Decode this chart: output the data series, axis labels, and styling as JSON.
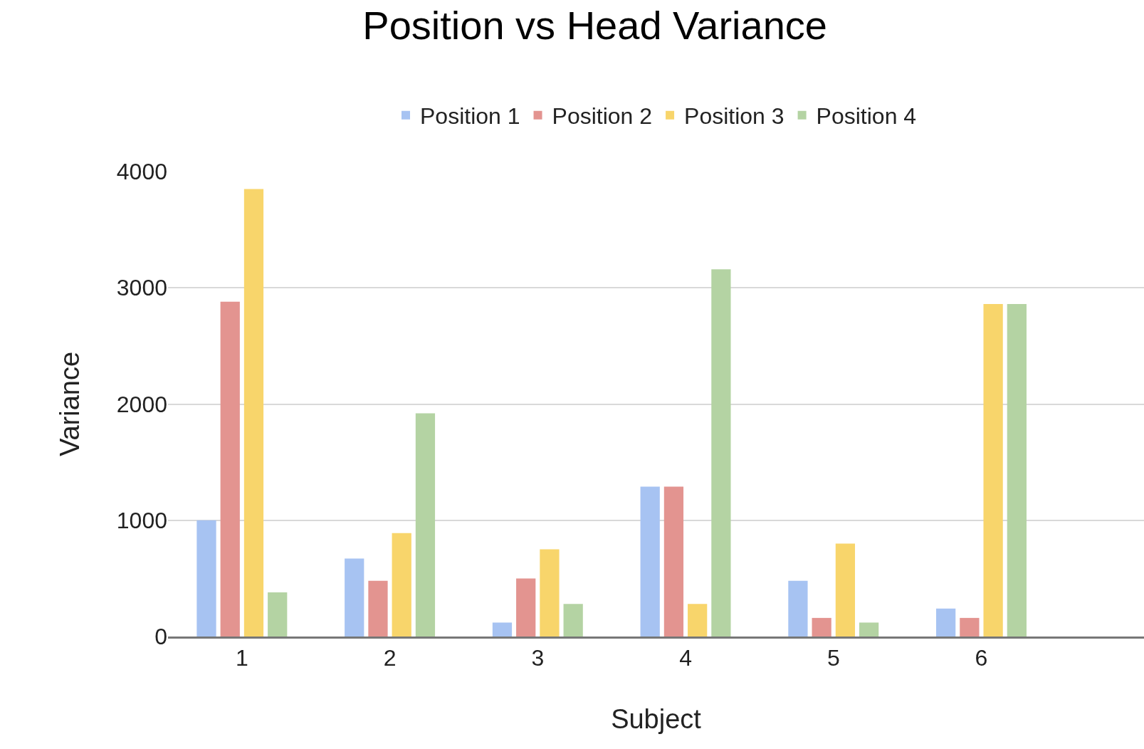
{
  "chart_data": {
    "type": "bar",
    "title": "Position vs Head Variance",
    "xlabel": "Subject",
    "ylabel": "Variance",
    "categories": [
      "1",
      "2",
      "3",
      "4",
      "5",
      "6"
    ],
    "series": [
      {
        "name": "Position 1",
        "color": "#a7c3f2",
        "values": [
          1000,
          670,
          120,
          1290,
          480,
          240
        ]
      },
      {
        "name": "Position 2",
        "color": "#e39490",
        "values": [
          2880,
          480,
          500,
          1290,
          160,
          160
        ]
      },
      {
        "name": "Position 3",
        "color": "#f8d56b",
        "values": [
          3850,
          890,
          750,
          280,
          800,
          2860
        ]
      },
      {
        "name": "Position 4",
        "color": "#b4d3a3",
        "values": [
          380,
          1920,
          280,
          3160,
          120,
          2860
        ]
      }
    ],
    "ylim": [
      0,
      4000
    ],
    "yticks": [
      0,
      1000,
      2000,
      3000,
      4000
    ],
    "grid": "y",
    "legend": "top"
  }
}
